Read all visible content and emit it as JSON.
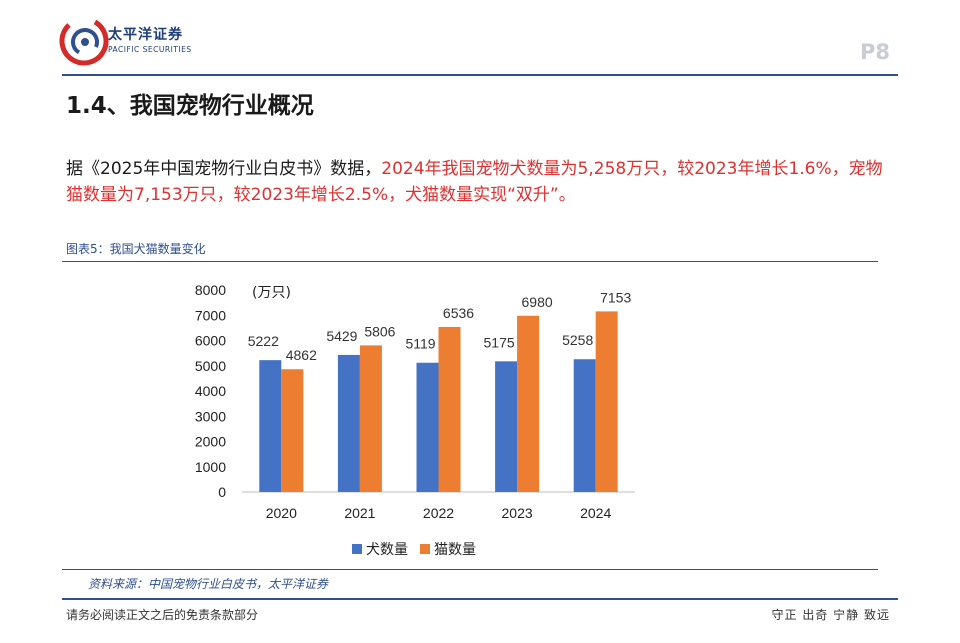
{
  "header": {
    "brand_cn": "太平洋证券",
    "brand_en": "PACIFIC SECURITIES",
    "page_number": "P8"
  },
  "section": {
    "title": "1.4、我国宠物行业概况"
  },
  "paragraph": {
    "part1": "据《2025年中国宠物行业白皮书》数据，",
    "part2": "2024年我国宠物犬数量为5,258万只，较2023年增长1.6%，宠物猫数量为7,153万只，较2023年增长2.5%，犬猫数量实现“双升”。"
  },
  "figure": {
    "label": "图表5：我国犬猫数量变化",
    "source": "资料来源：中国宠物行业白皮书，太平洋证券"
  },
  "footer": {
    "disclaimer": "请务必阅读正文之后的免责条款部分",
    "motto": "守正 出奇 宁静 致远"
  },
  "colors": {
    "dog": "#4472C4",
    "cat": "#ED7D31",
    "brand_blue": "#2f4f8f",
    "brand_red": "#d42a2a"
  },
  "chart_data": {
    "type": "bar",
    "title": "",
    "unit": "(万只)",
    "categories": [
      "2020",
      "2021",
      "2022",
      "2023",
      "2024"
    ],
    "series": [
      {
        "name": "犬数量",
        "values": [
          5222,
          5429,
          5119,
          5175,
          5258
        ]
      },
      {
        "name": "猫数量",
        "values": [
          4862,
          5806,
          6536,
          6980,
          7153
        ]
      }
    ],
    "ylim": [
      0,
      8000
    ],
    "yticks": [
      0,
      1000,
      2000,
      3000,
      4000,
      5000,
      6000,
      7000,
      8000
    ],
    "legend": "bottom",
    "grid": false
  }
}
